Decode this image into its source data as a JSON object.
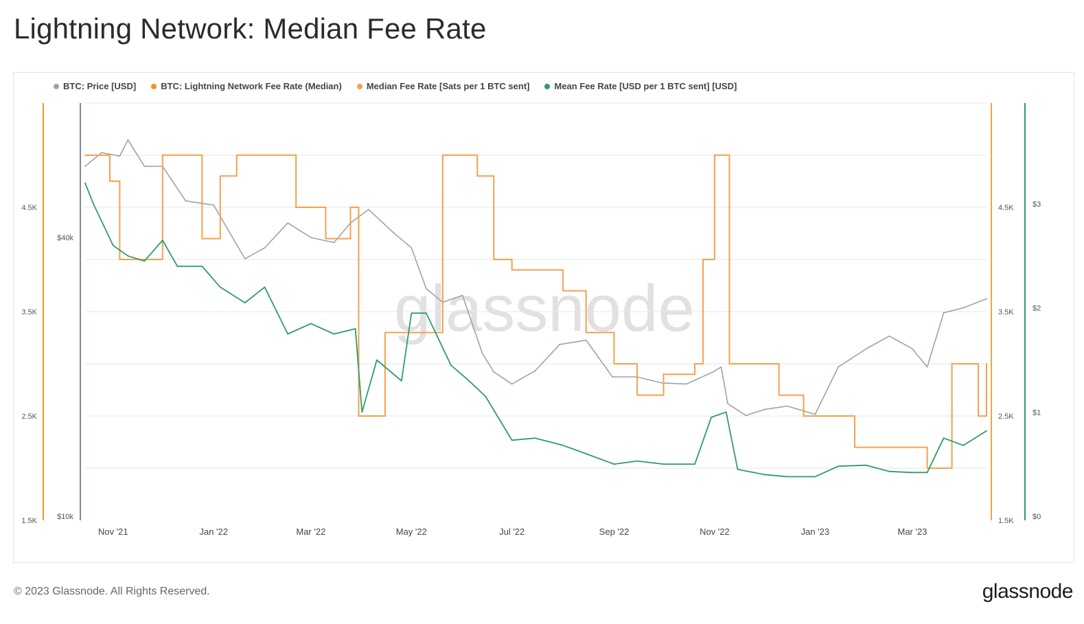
{
  "title": "Lightning Network: Median Fee Rate",
  "footer": "© 2023 Glassnode. All Rights Reserved.",
  "brand": "glassnode",
  "watermark": "glassnode",
  "colors": {
    "price": "#9aa3ab",
    "fee_median": "#f7931a",
    "fee_sats": "#f5a04b",
    "mean_fee": "#2e9b6e",
    "grid": "#e6e6e6"
  },
  "chart_data": {
    "type": "line",
    "legend": [
      {
        "name": "BTC: Price [USD]",
        "color": "#9aa3ab"
      },
      {
        "name": "BTC: Lightning Network Fee Rate (Median)",
        "color": "#f7931a"
      },
      {
        "name": "Median Fee Rate [Sats per 1 BTC sent]",
        "color": "#f5a04b"
      },
      {
        "name": "Mean Fee Rate [USD per 1 BTC sent] [USD]",
        "color": "#2e9b6e"
      }
    ],
    "x_ticks": [
      "Nov '21",
      "Jan '22",
      "Mar '22",
      "May '22",
      "Jul '22",
      "Sep '22",
      "Nov '22",
      "Jan '23",
      "Mar '23"
    ],
    "x_range": [
      "2021-10-15",
      "2023-04-15"
    ],
    "left_axis_sats": {
      "ticks": [
        "1.5K",
        "2.5K",
        "3.5K",
        "4.5K"
      ],
      "range": [
        1500,
        5500
      ]
    },
    "left_axis_price": {
      "ticks": [
        "$10k",
        "$40k"
      ],
      "scale": "log"
    },
    "right_axis_sats": {
      "ticks": [
        "1.5K",
        "2.5K",
        "3.5K",
        "4.5K"
      ],
      "range": [
        1500,
        5500
      ]
    },
    "right_axis_usd": {
      "ticks": [
        "$0",
        "$1",
        "$2",
        "$3"
      ],
      "range": [
        0,
        4
      ]
    },
    "series": [
      {
        "name": "BTC: Price [USD]",
        "axis": "price_log",
        "x": [
          "2021-10-15",
          "2021-10-25",
          "2021-11-05",
          "2021-11-10",
          "2021-11-20",
          "2021-12-01",
          "2021-12-15",
          "2022-01-01",
          "2022-01-20",
          "2022-02-01",
          "2022-02-15",
          "2022-03-01",
          "2022-03-15",
          "2022-03-25",
          "2022-04-05",
          "2022-04-20",
          "2022-05-01",
          "2022-05-10",
          "2022-05-20",
          "2022-06-01",
          "2022-06-13",
          "2022-06-20",
          "2022-07-01",
          "2022-07-15",
          "2022-07-30",
          "2022-08-15",
          "2022-08-31",
          "2022-09-15",
          "2022-09-30",
          "2022-10-15",
          "2022-10-31",
          "2022-11-05",
          "2022-11-09",
          "2022-11-20",
          "2022-12-01",
          "2022-12-15",
          "2023-01-01",
          "2023-01-15",
          "2023-02-01",
          "2023-02-15",
          "2023-03-01",
          "2023-03-10",
          "2023-03-20",
          "2023-04-01",
          "2023-04-15"
        ],
        "values": [
          57000,
          61000,
          60000,
          65000,
          57000,
          57000,
          48000,
          47000,
          36000,
          38000,
          43000,
          40000,
          39000,
          43000,
          46000,
          41000,
          38000,
          31000,
          29000,
          30000,
          22500,
          20500,
          19300,
          20600,
          23500,
          24000,
          20000,
          20000,
          19400,
          19300,
          20500,
          21000,
          17500,
          16500,
          17000,
          17300,
          16600,
          21000,
          23000,
          24500,
          23000,
          21000,
          27500,
          28200,
          29500
        ]
      },
      {
        "name": "Median Fee Rate [Sats per 1 BTC sent]",
        "axis": "sats",
        "x": [
          "2021-10-15",
          "2021-10-30",
          "2021-11-05",
          "2021-11-15",
          "2021-12-01",
          "2021-12-10",
          "2021-12-25",
          "2022-01-05",
          "2022-01-15",
          "2022-02-01",
          "2022-02-20",
          "2022-03-01",
          "2022-03-10",
          "2022-03-25",
          "2022-03-30",
          "2022-04-15",
          "2022-04-20",
          "2022-05-20",
          "2022-05-30",
          "2022-06-10",
          "2022-06-20",
          "2022-07-01",
          "2022-07-15",
          "2022-08-01",
          "2022-08-15",
          "2022-09-01",
          "2022-09-15",
          "2022-10-01",
          "2022-10-20",
          "2022-10-25",
          "2022-11-01",
          "2022-11-05",
          "2022-11-10",
          "2022-11-25",
          "2022-12-10",
          "2022-12-25",
          "2023-01-10",
          "2023-01-25",
          "2023-02-10",
          "2023-02-25",
          "2023-03-10",
          "2023-03-15",
          "2023-03-25",
          "2023-04-10",
          "2023-04-15"
        ],
        "values": [
          5000,
          4750,
          4000,
          4000,
          5000,
          5000,
          4200,
          4800,
          5000,
          5000,
          4500,
          4500,
          4200,
          4500,
          2500,
          3300,
          3300,
          5000,
          5000,
          4800,
          4000,
          3900,
          3900,
          3700,
          3300,
          3000,
          2700,
          2900,
          3000,
          4000,
          5000,
          5000,
          3000,
          3000,
          2700,
          2500,
          2500,
          2200,
          2200,
          2200,
          2000,
          2000,
          3000,
          2500,
          3000
        ]
      },
      {
        "name": "Mean Fee Rate [USD per 1 BTC sent] [USD]",
        "axis": "usd",
        "x": [
          "2021-10-15",
          "2021-10-20",
          "2021-11-01",
          "2021-11-10",
          "2021-11-20",
          "2021-12-01",
          "2021-12-10",
          "2021-12-25",
          "2022-01-05",
          "2022-01-20",
          "2022-02-01",
          "2022-02-15",
          "2022-03-01",
          "2022-03-15",
          "2022-03-28",
          "2022-04-01",
          "2022-04-10",
          "2022-04-25",
          "2022-05-01",
          "2022-05-10",
          "2022-05-25",
          "2022-06-05",
          "2022-06-15",
          "2022-07-01",
          "2022-07-15",
          "2022-08-01",
          "2022-08-15",
          "2022-09-01",
          "2022-09-15",
          "2022-10-01",
          "2022-10-20",
          "2022-10-30",
          "2022-11-08",
          "2022-11-15",
          "2022-12-01",
          "2022-12-15",
          "2023-01-01",
          "2023-01-15",
          "2023-02-01",
          "2023-02-15",
          "2023-03-01",
          "2023-03-10",
          "2023-03-20",
          "2023-04-01",
          "2023-04-15"
        ],
        "values": [
          3.2,
          3.0,
          2.6,
          2.5,
          2.45,
          2.65,
          2.4,
          2.4,
          2.2,
          2.05,
          2.2,
          1.75,
          1.85,
          1.75,
          1.8,
          1.0,
          1.5,
          1.3,
          1.95,
          1.95,
          1.45,
          1.3,
          1.15,
          0.73,
          0.75,
          0.68,
          0.6,
          0.5,
          0.53,
          0.5,
          0.5,
          0.95,
          1.0,
          0.45,
          0.4,
          0.38,
          0.38,
          0.48,
          0.49,
          0.43,
          0.42,
          0.42,
          0.75,
          0.68,
          0.82
        ]
      }
    ]
  }
}
